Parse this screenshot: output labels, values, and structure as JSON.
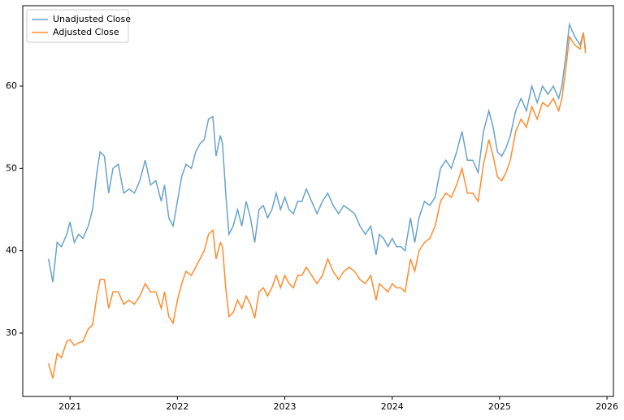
{
  "chart_data": {
    "type": "line",
    "x": [
      2020.8,
      2020.84,
      2020.88,
      2020.92,
      2020.97,
      2021,
      2021.04,
      2021.08,
      2021.12,
      2021.17,
      2021.21,
      2021.25,
      2021.28,
      2021.32,
      2021.36,
      2021.4,
      2021.45,
      2021.5,
      2021.55,
      2021.6,
      2021.65,
      2021.7,
      2021.75,
      2021.8,
      2021.85,
      2021.88,
      2021.92,
      2021.96,
      2022,
      2022.04,
      2022.08,
      2022.13,
      2022.17,
      2022.21,
      2022.25,
      2022.29,
      2022.33,
      2022.36,
      2022.4,
      2022.42,
      2022.45,
      2022.48,
      2022.52,
      2022.56,
      2022.6,
      2022.64,
      2022.68,
      2022.72,
      2022.76,
      2022.8,
      2022.84,
      2022.88,
      2022.92,
      2022.96,
      2023,
      2023.04,
      2023.08,
      2023.12,
      2023.16,
      2023.2,
      2023.25,
      2023.3,
      2023.35,
      2023.4,
      2023.45,
      2023.5,
      2023.55,
      2023.6,
      2023.65,
      2023.7,
      2023.75,
      2023.8,
      2023.85,
      2023.88,
      2023.92,
      2023.96,
      2024,
      2024.04,
      2024.08,
      2024.12,
      2024.17,
      2024.21,
      2024.25,
      2024.3,
      2024.35,
      2024.4,
      2024.45,
      2024.5,
      2024.55,
      2024.6,
      2024.65,
      2024.7,
      2024.75,
      2024.8,
      2024.85,
      2024.9,
      2024.94,
      2024.98,
      2025.02,
      2025.06,
      2025.1,
      2025.15,
      2025.2,
      2025.25,
      2025.3,
      2025.35,
      2025.4,
      2025.45,
      2025.5,
      2025.55,
      2025.58,
      2025.62,
      2025.65,
      2025.7,
      2025.75,
      2025.78,
      2025.8
    ],
    "series": [
      {
        "name": "Unadjusted Close",
        "color": "#68a3cd",
        "values": [
          39,
          36.2,
          41,
          40.5,
          42,
          43.5,
          41,
          42,
          41.5,
          43,
          45,
          49.5,
          52,
          51.5,
          47,
          50,
          50.5,
          47,
          47.5,
          47,
          48.5,
          51,
          48,
          48.5,
          46,
          48,
          44,
          43,
          46,
          49,
          50.5,
          50,
          52,
          53,
          53.5,
          56,
          56.3,
          51.5,
          54,
          53,
          47,
          42,
          43,
          45,
          43,
          46,
          44,
          41,
          45,
          45.5,
          44,
          45,
          47,
          45,
          46.5,
          45,
          44.5,
          46,
          46,
          47.5,
          46,
          44.5,
          46,
          47,
          45.5,
          44.5,
          45.5,
          45,
          44.5,
          43,
          42,
          43,
          39.5,
          42,
          41.5,
          40.5,
          41.5,
          40.5,
          40.5,
          40,
          44,
          41,
          44,
          46,
          45.5,
          46.5,
          50,
          51,
          50,
          52,
          54.5,
          51,
          51,
          49.5,
          54.5,
          57,
          55,
          52,
          51.5,
          52.5,
          54,
          57,
          58.5,
          57,
          60,
          58,
          60,
          59,
          60,
          58.5,
          60,
          64,
          67.5,
          66,
          65,
          66.5,
          64.5
        ]
      },
      {
        "name": "Adjusted Close",
        "color": "#ff8c2e",
        "values": [
          26.3,
          24.5,
          27.5,
          27,
          29,
          29.2,
          28.5,
          28.8,
          29,
          30.5,
          31,
          34.5,
          36.5,
          36.5,
          33,
          35,
          35,
          33.5,
          34,
          33.5,
          34.5,
          36,
          35,
          35,
          33,
          35,
          32,
          31.2,
          34,
          36,
          37.5,
          37,
          38,
          39,
          40,
          42,
          42.5,
          39,
          41,
          40.5,
          35.5,
          32,
          32.5,
          34,
          33,
          34.5,
          33.5,
          31.8,
          35,
          35.5,
          34.5,
          35.5,
          37,
          35.5,
          37,
          36,
          35.5,
          37,
          37,
          38,
          37,
          36,
          37,
          39,
          37.5,
          36.5,
          37.5,
          38,
          37.5,
          36.5,
          36,
          37,
          34,
          36,
          35.5,
          35,
          36,
          35.5,
          35.5,
          35,
          39,
          37.5,
          40,
          41,
          41.5,
          43,
          46,
          47,
          46.5,
          48,
          50,
          47,
          47,
          46,
          50.5,
          53.5,
          51.5,
          49,
          48.5,
          49.5,
          51,
          54.5,
          56,
          55,
          57.5,
          56,
          58,
          57.5,
          58.5,
          57,
          58.5,
          62.5,
          66,
          65,
          64.5,
          66.5,
          64
        ]
      }
    ],
    "xlim": [
      2020.56,
      2026.06
    ],
    "xticks": [
      2021,
      2022,
      2023,
      2024,
      2025,
      2026
    ],
    "ylim": [
      22.3,
      69.77
    ],
    "yticks": [
      30,
      40,
      50,
      60
    ],
    "grid": false,
    "legend": "upper left"
  }
}
